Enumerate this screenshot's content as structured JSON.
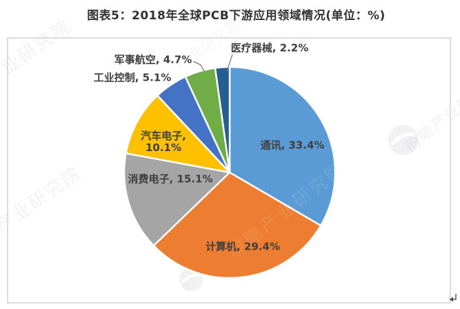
{
  "title": "图表5：2018年全球PCB下游应用领域情况(单位：%)",
  "chart_data": {
    "type": "pie",
    "title": "图表5：2018年全球PCB下游应用领域情况(单位：%)",
    "unit": "%",
    "start_angle_deg": 0,
    "direction": "clockwise",
    "slices": [
      {
        "label": "通讯",
        "value": 33.4,
        "color": "#5B9BD5",
        "label_placement": "inside"
      },
      {
        "label": "计算机",
        "value": 29.4,
        "color": "#ED7D31",
        "label_placement": "inside"
      },
      {
        "label": "消费电子",
        "value": 15.1,
        "color": "#A5A5A5",
        "label_placement": "inside"
      },
      {
        "label": "汽车电子",
        "value": 10.1,
        "color": "#FFC000",
        "label_placement": "inside"
      },
      {
        "label": "工业控制",
        "value": 5.1,
        "color": "#4472C4",
        "label_placement": "outside"
      },
      {
        "label": "军事航空",
        "value": 4.7,
        "color": "#70AD47",
        "label_placement": "outside"
      },
      {
        "label": "医疗器械",
        "value": 2.2,
        "color": "#255E91",
        "label_placement": "outside"
      }
    ]
  },
  "watermarks": {
    "corner_text": "产业研究院",
    "brand_text": "前瞻产业研究院",
    "return_mark": "↵"
  }
}
